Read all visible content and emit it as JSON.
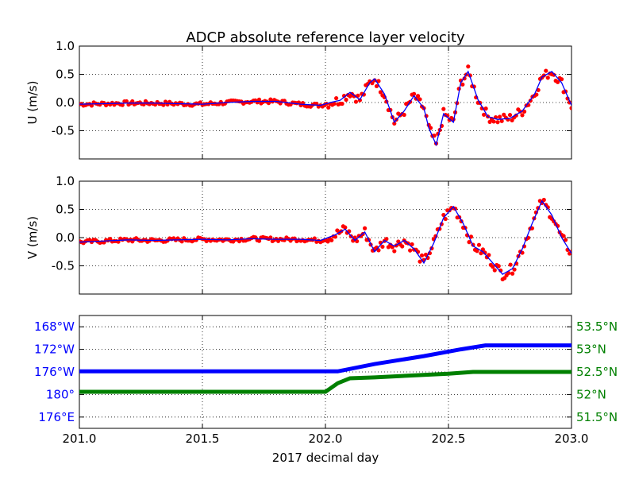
{
  "figure_title": "ADCP absolute reference layer velocity",
  "colors": {
    "obs_points": "#ff0000",
    "smooth_line": "#0000ff",
    "lon_line": "#0000ff",
    "lat_line": "#008000",
    "grid": "#000000",
    "axes": "#000000"
  },
  "chart_data": [
    {
      "type": "scatter",
      "panel": "U",
      "title": "ADCP absolute reference layer velocity",
      "ylabel": "U (m/s)",
      "xlim": [
        201.0,
        203.0
      ],
      "ylim": [
        -1.0,
        1.0
      ],
      "yticks": [
        "",
        "-0.5",
        "0.0",
        "0.5",
        "1.0"
      ],
      "ytick_values": [
        -1.0,
        -0.5,
        0.0,
        0.5,
        1.0
      ],
      "grid": true,
      "series": [
        {
          "style": "red-dots-with-blue-line",
          "x": [
            201.0,
            201.1,
            201.2,
            201.3,
            201.4,
            201.5,
            201.6,
            201.7,
            201.8,
            201.9,
            201.98,
            202.02,
            202.06,
            202.1,
            202.14,
            202.18,
            202.2,
            202.24,
            202.28,
            202.32,
            202.36,
            202.4,
            202.42,
            202.45,
            202.48,
            202.52,
            202.55,
            202.58,
            202.62,
            202.66,
            202.7,
            202.75,
            202.8,
            202.85,
            202.88,
            202.92,
            202.96,
            203.0
          ],
          "y": [
            -0.03,
            -0.02,
            -0.01,
            -0.01,
            -0.02,
            -0.03,
            0.0,
            0.02,
            0.02,
            -0.03,
            -0.05,
            0.0,
            0.04,
            0.18,
            0.05,
            0.35,
            0.42,
            0.15,
            -0.35,
            -0.15,
            0.12,
            -0.1,
            -0.45,
            -0.75,
            -0.2,
            -0.35,
            0.35,
            0.55,
            0.05,
            -0.25,
            -0.3,
            -0.28,
            -0.15,
            0.15,
            0.45,
            0.55,
            0.35,
            -0.05
          ]
        }
      ]
    },
    {
      "type": "scatter",
      "panel": "V",
      "ylabel": "V (m/s)",
      "xlim": [
        201.0,
        203.0
      ],
      "ylim": [
        -1.0,
        1.0
      ],
      "yticks": [
        "",
        "-0.5",
        "0.0",
        "0.5",
        "1.0"
      ],
      "ytick_values": [
        -1.0,
        -0.5,
        0.0,
        0.5,
        1.0
      ],
      "grid": true,
      "series": [
        {
          "style": "red-dots-with-blue-line",
          "x": [
            201.0,
            201.1,
            201.2,
            201.3,
            201.4,
            201.5,
            201.6,
            201.7,
            201.8,
            201.9,
            201.98,
            202.04,
            202.08,
            202.12,
            202.16,
            202.2,
            202.24,
            202.28,
            202.32,
            202.36,
            202.4,
            202.44,
            202.48,
            202.52,
            202.56,
            202.6,
            202.64,
            202.68,
            202.72,
            202.76,
            202.8,
            202.84,
            202.88,
            202.92,
            202.96,
            203.0
          ],
          "y": [
            -0.08,
            -0.06,
            -0.04,
            -0.05,
            -0.04,
            -0.03,
            -0.04,
            -0.02,
            -0.03,
            -0.03,
            -0.05,
            0.05,
            0.15,
            -0.05,
            0.1,
            -0.25,
            -0.05,
            -0.15,
            -0.05,
            -0.2,
            -0.45,
            -0.1,
            0.35,
            0.55,
            0.25,
            -0.15,
            -0.25,
            -0.45,
            -0.65,
            -0.55,
            -0.2,
            0.25,
            0.65,
            0.4,
            0.0,
            -0.28
          ]
        }
      ]
    },
    {
      "type": "line",
      "panel": "position",
      "xlabel": "2017 decimal day",
      "xlim": [
        201.0,
        203.0
      ],
      "xticks": [
        "201.0",
        "201.5",
        "202.0",
        "202.5",
        "203.0"
      ],
      "xtick_values": [
        201.0,
        201.5,
        202.0,
        202.5,
        203.0
      ],
      "grid": true,
      "left_axis": {
        "quantity": "longitude",
        "ylim": [
          -186,
          -166
        ],
        "yticks": [
          "168°W",
          "172°W",
          "176°W",
          "180°",
          "176°E"
        ],
        "ytick_values": [
          -168,
          -172,
          -176,
          -180,
          -184
        ]
      },
      "right_axis": {
        "quantity": "latitude",
        "ylim": [
          51.25,
          53.75
        ],
        "yticks": [
          "53.5°N",
          "53°N",
          "52.5°N",
          "52°N",
          "51.5°N"
        ],
        "ytick_values": [
          53.5,
          53.0,
          52.5,
          52.0,
          51.5
        ]
      },
      "series": [
        {
          "axis": "left",
          "x": [
            201.0,
            202.05,
            202.2,
            202.4,
            202.55,
            202.65,
            203.0
          ],
          "y": [
            -175.9,
            -175.9,
            -174.6,
            -173.2,
            -172.0,
            -171.3,
            -171.3
          ]
        },
        {
          "axis": "right",
          "x": [
            201.0,
            202.0,
            202.05,
            202.1,
            202.2,
            202.35,
            202.5,
            202.6,
            203.0
          ],
          "y": [
            52.06,
            52.06,
            52.25,
            52.36,
            52.38,
            52.42,
            52.46,
            52.5,
            52.5
          ]
        }
      ]
    }
  ]
}
